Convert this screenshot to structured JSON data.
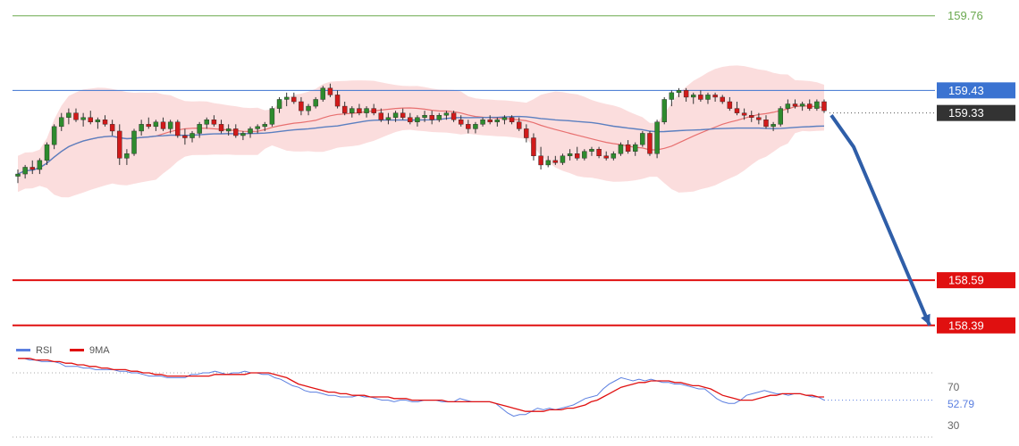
{
  "chart_data": [
    {
      "type": "candlestick",
      "title": "",
      "ylim": [
        158.33,
        159.83
      ],
      "grid": false,
      "colors": {
        "up": "#2e8b2e",
        "down": "#d11a1a",
        "wick": "#333333",
        "bollinger_fill": "#f9d2d2",
        "ma_fast": "#e87070",
        "ma_slow": "#5b7fc0"
      },
      "candles": [
        [
          159.05,
          159.08,
          159.02,
          159.06
        ],
        [
          159.06,
          159.1,
          159.04,
          159.09
        ],
        [
          159.09,
          159.12,
          159.06,
          159.08
        ],
        [
          159.08,
          159.13,
          159.06,
          159.12
        ],
        [
          159.12,
          159.2,
          159.1,
          159.19
        ],
        [
          159.19,
          159.28,
          159.17,
          159.27
        ],
        [
          159.27,
          159.33,
          159.25,
          159.31
        ],
        [
          159.31,
          159.35,
          159.28,
          159.33
        ],
        [
          159.33,
          159.35,
          159.29,
          159.3
        ],
        [
          159.3,
          159.33,
          159.27,
          159.31
        ],
        [
          159.31,
          159.34,
          159.28,
          159.29
        ],
        [
          159.29,
          159.31,
          159.26,
          159.3
        ],
        [
          159.3,
          159.32,
          159.27,
          159.28
        ],
        [
          159.28,
          159.3,
          159.23,
          159.25
        ],
        [
          159.25,
          159.28,
          159.1,
          159.13
        ],
        [
          159.13,
          159.17,
          159.1,
          159.15
        ],
        [
          159.15,
          159.26,
          159.14,
          159.25
        ],
        [
          159.25,
          159.3,
          159.23,
          159.28
        ],
        [
          159.28,
          159.31,
          159.26,
          159.27
        ],
        [
          159.27,
          159.3,
          159.25,
          159.29
        ],
        [
          159.29,
          159.31,
          159.25,
          159.26
        ],
        [
          159.26,
          159.3,
          159.24,
          159.29
        ],
        [
          159.29,
          159.3,
          159.22,
          159.23
        ],
        [
          159.23,
          159.26,
          159.19,
          159.22
        ],
        [
          159.22,
          159.25,
          159.2,
          159.24
        ],
        [
          159.24,
          159.29,
          159.22,
          159.28
        ],
        [
          159.28,
          159.31,
          159.26,
          159.3
        ],
        [
          159.3,
          159.32,
          159.27,
          159.28
        ],
        [
          159.28,
          159.3,
          159.24,
          159.25
        ],
        [
          159.25,
          159.28,
          159.23,
          159.26
        ],
        [
          159.26,
          159.28,
          159.22,
          159.23
        ],
        [
          159.23,
          159.25,
          159.21,
          159.24
        ],
        [
          159.24,
          159.27,
          159.22,
          159.26
        ],
        [
          159.26,
          159.28,
          159.24,
          159.27
        ],
        [
          159.27,
          159.29,
          159.25,
          159.28
        ],
        [
          159.28,
          159.36,
          159.27,
          159.35
        ],
        [
          159.35,
          159.4,
          159.33,
          159.39
        ],
        [
          159.39,
          159.42,
          159.36,
          159.4
        ],
        [
          159.4,
          159.42,
          159.37,
          159.38
        ],
        [
          159.38,
          159.4,
          159.32,
          159.34
        ],
        [
          159.34,
          159.37,
          159.32,
          159.36
        ],
        [
          159.36,
          159.4,
          159.35,
          159.39
        ],
        [
          159.39,
          159.45,
          159.38,
          159.44
        ],
        [
          159.44,
          159.46,
          159.4,
          159.41
        ],
        [
          159.41,
          159.43,
          159.35,
          159.36
        ],
        [
          159.36,
          159.38,
          159.32,
          159.33
        ],
        [
          159.33,
          159.36,
          159.31,
          159.35
        ],
        [
          159.35,
          159.37,
          159.32,
          159.33
        ],
        [
          159.33,
          159.36,
          159.31,
          159.35
        ],
        [
          159.35,
          159.37,
          159.32,
          159.33
        ],
        [
          159.33,
          159.35,
          159.29,
          159.3
        ],
        [
          159.3,
          159.33,
          159.28,
          159.31
        ],
        [
          159.31,
          159.34,
          159.29,
          159.33
        ],
        [
          159.33,
          159.35,
          159.3,
          159.31
        ],
        [
          159.31,
          159.33,
          159.28,
          159.29
        ],
        [
          159.29,
          159.32,
          159.27,
          159.31
        ],
        [
          159.31,
          159.34,
          159.29,
          159.32
        ],
        [
          159.32,
          159.34,
          159.28,
          159.3
        ],
        [
          159.3,
          159.33,
          159.29,
          159.32
        ],
        [
          159.32,
          159.34,
          159.3,
          159.33
        ],
        [
          159.33,
          159.34,
          159.29,
          159.3
        ],
        [
          159.3,
          159.32,
          159.27,
          159.28
        ],
        [
          159.28,
          159.3,
          159.24,
          159.26
        ],
        [
          159.26,
          159.29,
          159.24,
          159.28
        ],
        [
          159.28,
          159.31,
          159.27,
          159.3
        ],
        [
          159.3,
          159.32,
          159.28,
          159.29
        ],
        [
          159.29,
          159.31,
          159.27,
          159.3
        ],
        [
          159.3,
          159.32,
          159.28,
          159.31
        ],
        [
          159.31,
          159.32,
          159.28,
          159.29
        ],
        [
          159.29,
          159.31,
          159.25,
          159.26
        ],
        [
          159.26,
          159.28,
          159.2,
          159.22
        ],
        [
          159.22,
          159.24,
          159.12,
          159.14
        ],
        [
          159.14,
          159.18,
          159.08,
          159.1
        ],
        [
          159.1,
          159.14,
          159.09,
          159.12
        ],
        [
          159.12,
          159.14,
          159.1,
          159.11
        ],
        [
          159.11,
          159.15,
          159.1,
          159.14
        ],
        [
          159.14,
          159.17,
          159.12,
          159.15
        ],
        [
          159.15,
          159.18,
          159.12,
          159.13
        ],
        [
          159.13,
          159.17,
          159.12,
          159.16
        ],
        [
          159.16,
          159.18,
          159.14,
          159.17
        ],
        [
          159.17,
          159.18,
          159.13,
          159.14
        ],
        [
          159.14,
          159.16,
          159.12,
          159.13
        ],
        [
          159.13,
          159.16,
          159.12,
          159.15
        ],
        [
          159.15,
          159.2,
          159.14,
          159.19
        ],
        [
          159.19,
          159.21,
          159.15,
          159.16
        ],
        [
          159.16,
          159.2,
          159.14,
          159.19
        ],
        [
          159.19,
          159.25,
          159.18,
          159.24
        ],
        [
          159.24,
          159.25,
          159.14,
          159.15
        ],
        [
          159.15,
          159.3,
          159.13,
          159.29
        ],
        [
          159.29,
          159.4,
          159.28,
          159.39
        ],
        [
          159.39,
          159.43,
          159.36,
          159.42
        ],
        [
          159.42,
          159.44,
          159.4,
          159.43
        ],
        [
          159.43,
          159.44,
          159.38,
          159.4
        ],
        [
          159.4,
          159.42,
          159.37,
          159.41
        ],
        [
          159.41,
          159.43,
          159.38,
          159.39
        ],
        [
          159.39,
          159.42,
          159.37,
          159.41
        ],
        [
          159.41,
          159.42,
          159.38,
          159.4
        ],
        [
          159.4,
          159.41,
          159.37,
          159.38
        ],
        [
          159.38,
          159.4,
          159.34,
          159.35
        ],
        [
          159.35,
          159.38,
          159.32,
          159.33
        ],
        [
          159.33,
          159.35,
          159.3,
          159.32
        ],
        [
          159.32,
          159.34,
          159.29,
          159.31
        ],
        [
          159.31,
          159.33,
          159.28,
          159.3
        ],
        [
          159.3,
          159.32,
          159.26,
          159.27
        ],
        [
          159.27,
          159.29,
          159.25,
          159.28
        ],
        [
          159.28,
          159.36,
          159.27,
          159.35
        ],
        [
          159.35,
          159.39,
          159.33,
          159.37
        ],
        [
          159.37,
          159.39,
          159.35,
          159.36
        ],
        [
          159.36,
          159.38,
          159.34,
          159.37
        ],
        [
          159.37,
          159.39,
          159.34,
          159.35
        ],
        [
          159.35,
          159.39,
          159.34,
          159.38
        ],
        [
          159.38,
          159.39,
          159.33,
          159.34
        ]
      ],
      "indicators": [
        "Bollinger Bands",
        "Moving Average (fast)",
        "Moving Average (slow)"
      ],
      "levels": [
        {
          "value": "159.76",
          "color": "#6aa84f",
          "style": "solid",
          "label_type": "text"
        },
        {
          "value": "159.43",
          "color": "#3b73d1",
          "style": "solid",
          "label_type": "tag"
        },
        {
          "value": "159.33",
          "color": "#333333",
          "style": "dotted",
          "label_type": "tag",
          "note": "current price"
        },
        {
          "value": "158.59",
          "color": "#e01010",
          "style": "solid",
          "label_type": "tag"
        },
        {
          "value": "158.39",
          "color": "#e01010",
          "style": "solid",
          "label_type": "tag"
        }
      ],
      "projection_arrow": {
        "color": "#2f5ea8",
        "points": [
          [
            159.32,
            0
          ],
          [
            159.18,
            1
          ],
          [
            158.39,
            2
          ]
        ]
      }
    },
    {
      "type": "line",
      "ylim": [
        30,
        80
      ],
      "legend": {
        "placement": "top-left",
        "entries": [
          {
            "name": "RSI",
            "color": "#5b7fe0"
          },
          {
            "name": "9MA",
            "color": "#e01010"
          }
        ]
      },
      "reference_levels": [
        "70",
        "30"
      ],
      "last_value": "52.79",
      "series": [
        {
          "name": "RSI",
          "values": [
            79,
            79,
            78,
            78,
            77,
            77,
            77,
            76,
            74,
            74,
            74,
            73,
            73,
            72,
            72,
            72,
            72,
            71,
            71,
            70,
            70,
            69,
            68,
            68,
            68,
            67,
            67,
            67,
            67,
            69,
            69,
            70,
            70,
            71,
            70,
            69,
            70,
            70,
            71,
            70,
            70,
            69,
            69,
            67,
            66,
            64,
            62,
            61,
            59,
            58,
            58,
            57,
            56,
            56,
            55,
            55,
            55,
            56,
            55,
            55,
            54,
            53,
            53,
            52,
            53,
            53,
            52,
            52,
            53,
            53,
            53,
            52,
            52,
            52,
            54,
            53,
            52,
            52,
            52,
            52,
            51,
            48,
            45,
            43,
            44,
            44,
            46,
            48,
            47,
            48,
            47,
            48,
            49,
            50,
            52,
            54,
            55,
            56,
            60,
            63,
            65,
            67,
            66,
            65,
            66,
            65,
            66,
            65,
            64,
            64,
            63,
            63,
            62,
            61,
            60,
            60,
            57,
            54,
            52,
            51,
            51,
            53,
            56,
            57,
            58,
            59,
            58,
            57,
            57,
            56,
            57,
            57,
            56,
            55,
            55,
            53
          ]
        },
        {
          "name": "9MA",
          "values": [
            79,
            79,
            79,
            78,
            78,
            78,
            77,
            77,
            76,
            76,
            75,
            75,
            74,
            74,
            73,
            73,
            72,
            72,
            72,
            71,
            71,
            70,
            70,
            69,
            69,
            68,
            68,
            68,
            68,
            68,
            68,
            68,
            68,
            69,
            69,
            69,
            69,
            69,
            69,
            70,
            70,
            70,
            70,
            69,
            68,
            67,
            65,
            63,
            62,
            61,
            60,
            59,
            58,
            58,
            57,
            57,
            56,
            56,
            56,
            55,
            55,
            55,
            55,
            54,
            54,
            54,
            53,
            53,
            53,
            53,
            53,
            53,
            52,
            52,
            52,
            52,
            52,
            52,
            52,
            52,
            51,
            50,
            49,
            48,
            47,
            46,
            46,
            46,
            46,
            47,
            47,
            47,
            48,
            48,
            49,
            50,
            52,
            53,
            55,
            57,
            59,
            61,
            62,
            63,
            64,
            64,
            65,
            65,
            65,
            65,
            64,
            64,
            63,
            62,
            62,
            61,
            60,
            58,
            56,
            55,
            54,
            53,
            53,
            53,
            54,
            55,
            56,
            56,
            57,
            57,
            57,
            57,
            56,
            56,
            55,
            55
          ]
        }
      ]
    }
  ]
}
